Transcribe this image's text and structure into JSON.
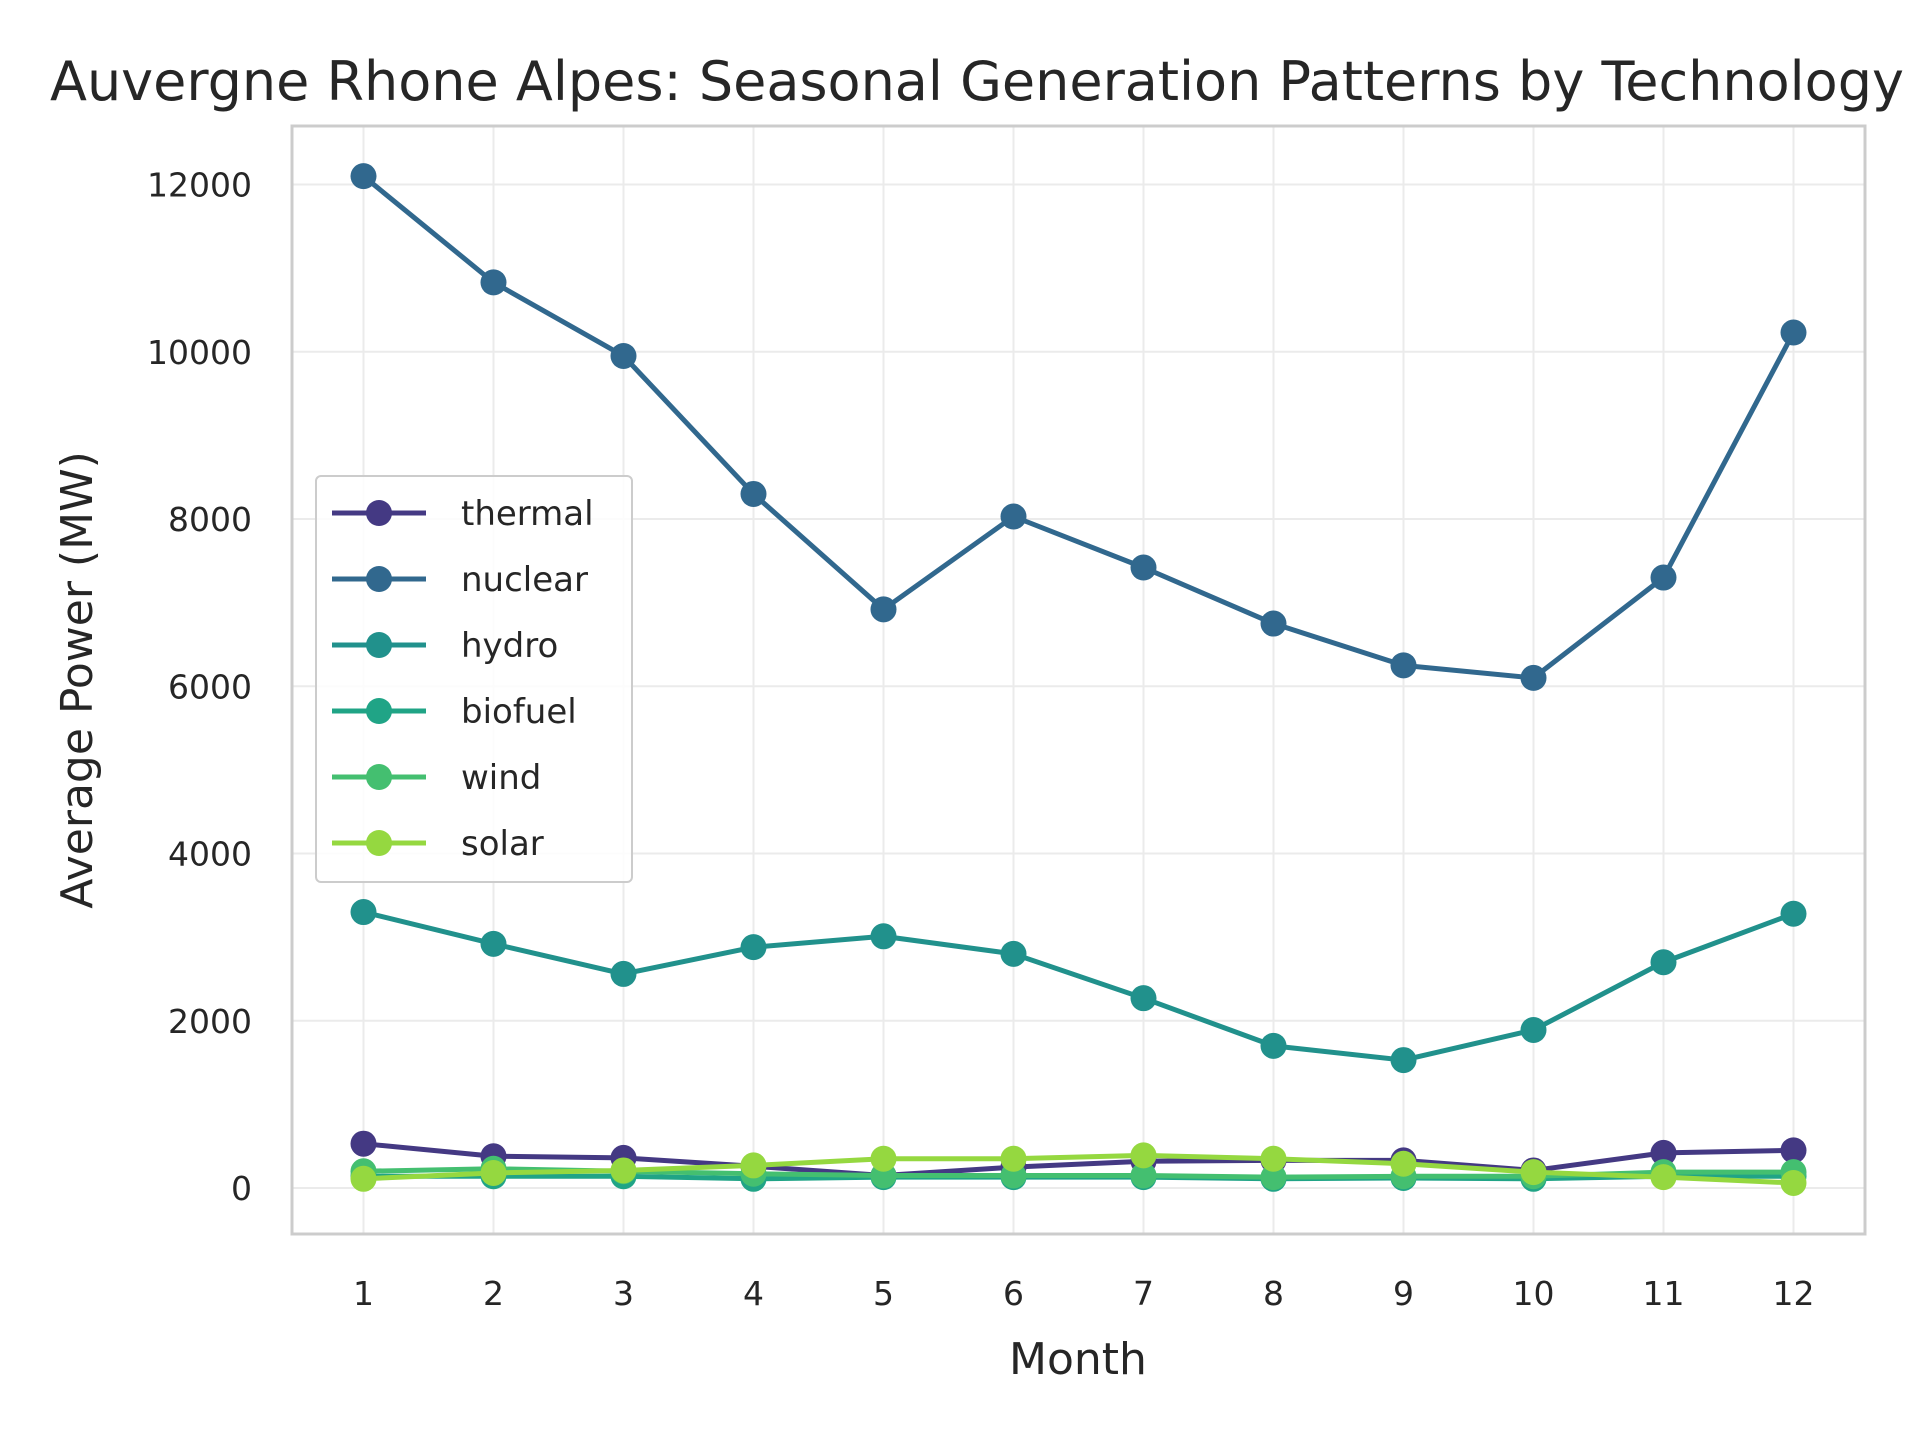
{
  "chart_data": {
    "type": "line",
    "title": "Auvergne Rhone Alpes: Seasonal Generation Patterns by Technology",
    "xlabel": "Month",
    "ylabel": "Average Power (MW)",
    "x": [
      1,
      2,
      3,
      4,
      5,
      6,
      7,
      8,
      9,
      10,
      11,
      12
    ],
    "xlim": [
      0.45,
      12.55
    ],
    "ylim": [
      -550,
      12700
    ],
    "yticks": [
      0,
      2000,
      4000,
      6000,
      8000,
      10000,
      12000
    ],
    "grid": true,
    "legend_position": "center-left",
    "series": [
      {
        "name": "thermal",
        "color": "#443983",
        "values": [
          530,
          380,
          360,
          260,
          150,
          250,
          320,
          330,
          330,
          210,
          420,
          450
        ]
      },
      {
        "name": "nuclear",
        "color": "#31688e",
        "values": [
          12100,
          10830,
          9950,
          8300,
          6920,
          8030,
          7420,
          6750,
          6250,
          6100,
          7300,
          10230
        ]
      },
      {
        "name": "hydro",
        "color": "#21918c",
        "values": [
          3300,
          2920,
          2560,
          2880,
          3010,
          2800,
          2270,
          1700,
          1530,
          1890,
          2700,
          3280
        ]
      },
      {
        "name": "biofuel",
        "color": "#20a486",
        "values": [
          140,
          140,
          140,
          110,
          130,
          130,
          130,
          110,
          120,
          110,
          140,
          140
        ]
      },
      {
        "name": "wind",
        "color": "#44bf70",
        "values": [
          200,
          230,
          200,
          170,
          150,
          150,
          150,
          130,
          140,
          140,
          190,
          190
        ]
      },
      {
        "name": "solar",
        "color": "#95d840",
        "values": [
          110,
          180,
          210,
          270,
          350,
          350,
          390,
          350,
          290,
          190,
          130,
          60
        ]
      }
    ]
  }
}
